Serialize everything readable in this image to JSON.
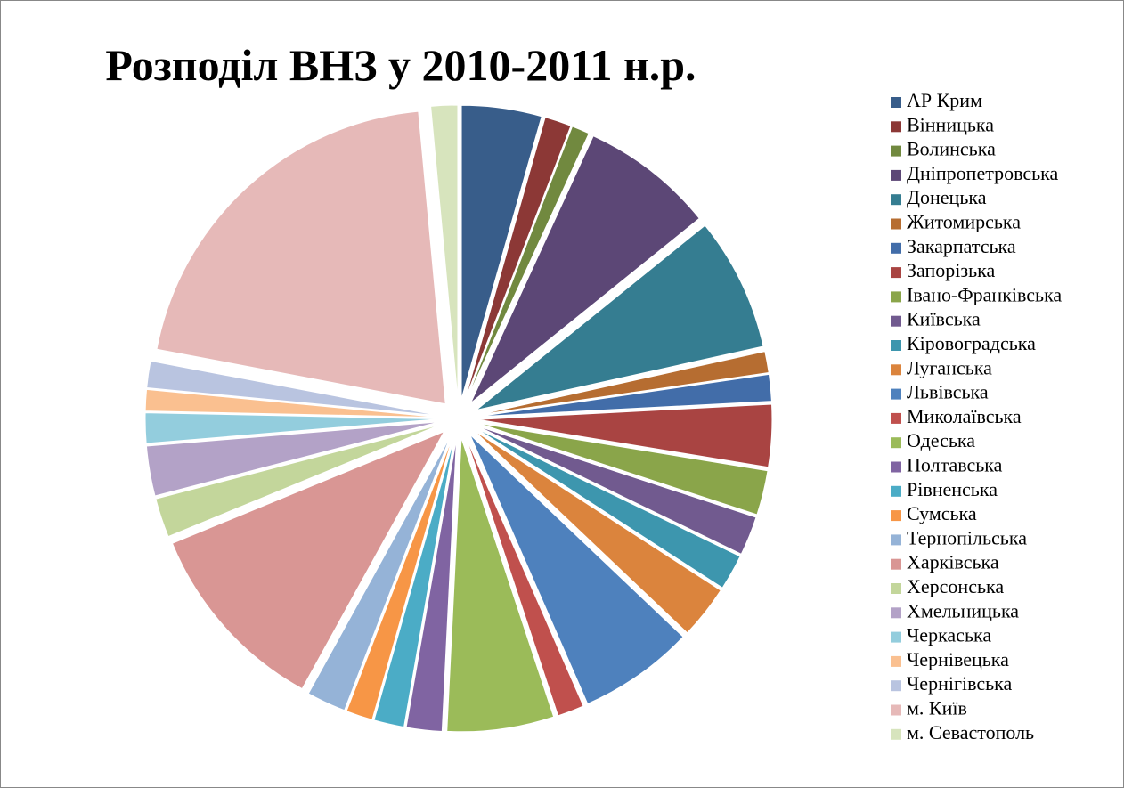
{
  "chart_data": {
    "type": "pie",
    "title": "Розподіл ВНЗ у 2010-2011 н.р.",
    "categories": [
      "АР Крим",
      "Вінницька",
      "Волинська",
      "Дніпропетровська",
      "Донецька",
      "Житомирська",
      "Закарпатська",
      "Запорізька",
      "Івано-Франківська",
      "Київська",
      "Кіровоградська",
      "Луганська",
      "Львівська",
      "Миколаївська",
      "Одеська",
      "Полтавська",
      "Рівненська",
      "Сумська",
      "Тернопільська",
      "Харківська",
      "Херсонська",
      "Хмельницька",
      "Черкаська",
      "Чернівецька",
      "Чернігівська",
      "м. Київ",
      "м. Севастополь"
    ],
    "values": [
      4.5,
      1.5,
      1,
      7.5,
      7.5,
      1.2,
      1.5,
      3.5,
      2.5,
      2.2,
      2,
      3,
      6.5,
      1.5,
      6,
      2,
      1.7,
      1.5,
      2.2,
      11,
      2.2,
      2.8,
      1.7,
      1.2,
      1.5,
      21,
      1.5
    ],
    "colors": [
      "#385d8a",
      "#8c3836",
      "#71893f",
      "#5c4776",
      "#357d91",
      "#b66d31",
      "#426da9",
      "#a94442",
      "#8aa54a",
      "#715a8f",
      "#3d96ae",
      "#db843d",
      "#4e81bd",
      "#c0504d",
      "#9bbb59",
      "#8064a2",
      "#4bacc6",
      "#f79646",
      "#95b3d7",
      "#d99694",
      "#c3d69b",
      "#b3a2c7",
      "#93cddd",
      "#fac090",
      "#b9c4e0",
      "#e6b9b8",
      "#d7e4bd"
    ],
    "legend": "right"
  }
}
